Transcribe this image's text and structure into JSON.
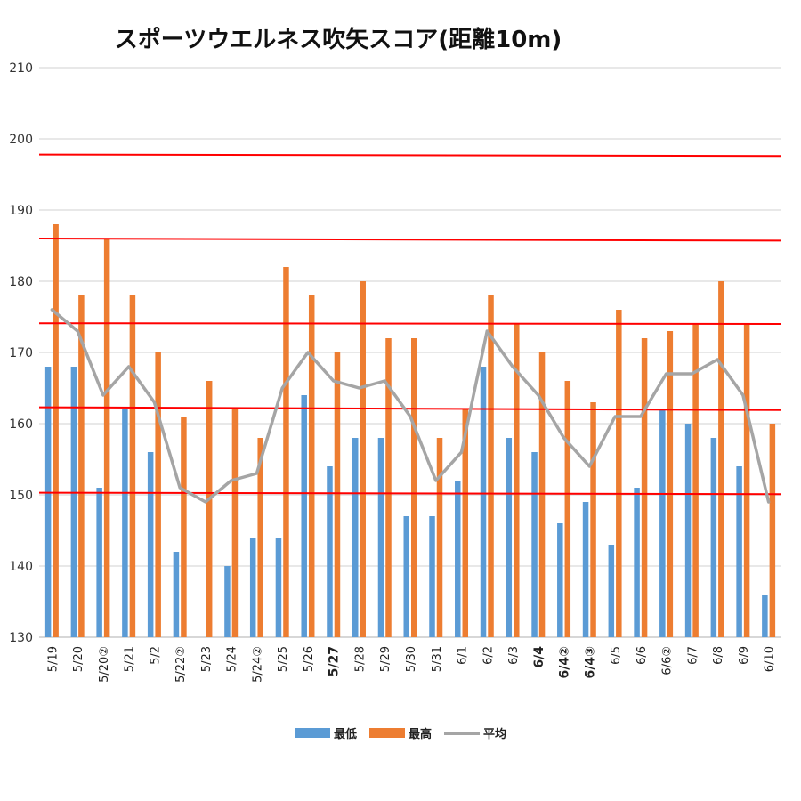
{
  "chart_data": {
    "type": "bar",
    "title": "スポーツウエルネス吹矢スコア(距離10m)",
    "xlabel": "",
    "ylabel": "",
    "ylim": [
      130,
      210
    ],
    "yticks": [
      130,
      140,
      150,
      160,
      170,
      180,
      190,
      200,
      210
    ],
    "grid": true,
    "legend_position": "bottom",
    "categories": [
      "5/19",
      "5/20",
      "5/20②",
      "5/21",
      "5/2",
      "5/22②",
      "5/23",
      "5/24",
      "5/24②",
      "5/25",
      "5/26",
      "5/27",
      "5/28",
      "5/29",
      "5/30",
      "5/31",
      "6/1",
      "6/2",
      "6/3",
      "6/4",
      "6/4②",
      "6/4③",
      "6/5",
      "6/6",
      "6/6②",
      "6/7",
      "6/8",
      "6/9",
      "6/10"
    ],
    "series": [
      {
        "name": "最低",
        "type": "bar",
        "color": "#5B9BD5",
        "values": [
          168,
          168,
          151,
          162,
          156,
          142,
          null,
          140,
          144,
          144,
          164,
          154,
          158,
          158,
          147,
          147,
          152,
          168,
          158,
          156,
          146,
          149,
          143,
          151,
          162,
          160,
          158,
          154,
          136
        ]
      },
      {
        "name": "最高",
        "type": "bar",
        "color": "#ED7D31",
        "values": [
          188,
          178,
          186,
          178,
          170,
          161,
          166,
          162,
          158,
          182,
          178,
          170,
          180,
          172,
          172,
          158,
          162,
          178,
          174,
          170,
          166,
          163,
          176,
          172,
          173,
          174,
          180,
          174,
          160
        ]
      },
      {
        "name": "平均",
        "type": "line",
        "color": "#A5A5A5",
        "values": [
          176,
          173,
          164,
          168,
          163,
          151,
          149,
          152,
          153,
          165,
          170,
          166,
          165,
          166,
          161,
          152,
          156,
          173,
          168,
          164,
          158,
          154,
          161,
          161,
          167,
          167,
          169,
          164,
          149
        ]
      }
    ],
    "reference_lines": {
      "color": "#FF0000",
      "lines": [
        {
          "y_start": 197.8,
          "y_end": 197.6
        },
        {
          "y_start": 186,
          "y_end": 185.7
        },
        {
          "y_start": 174.1,
          "y_end": 174
        },
        {
          "y_start": 162.3,
          "y_end": 161.9
        },
        {
          "y_start": 150.3,
          "y_end": 150.1
        }
      ]
    }
  }
}
